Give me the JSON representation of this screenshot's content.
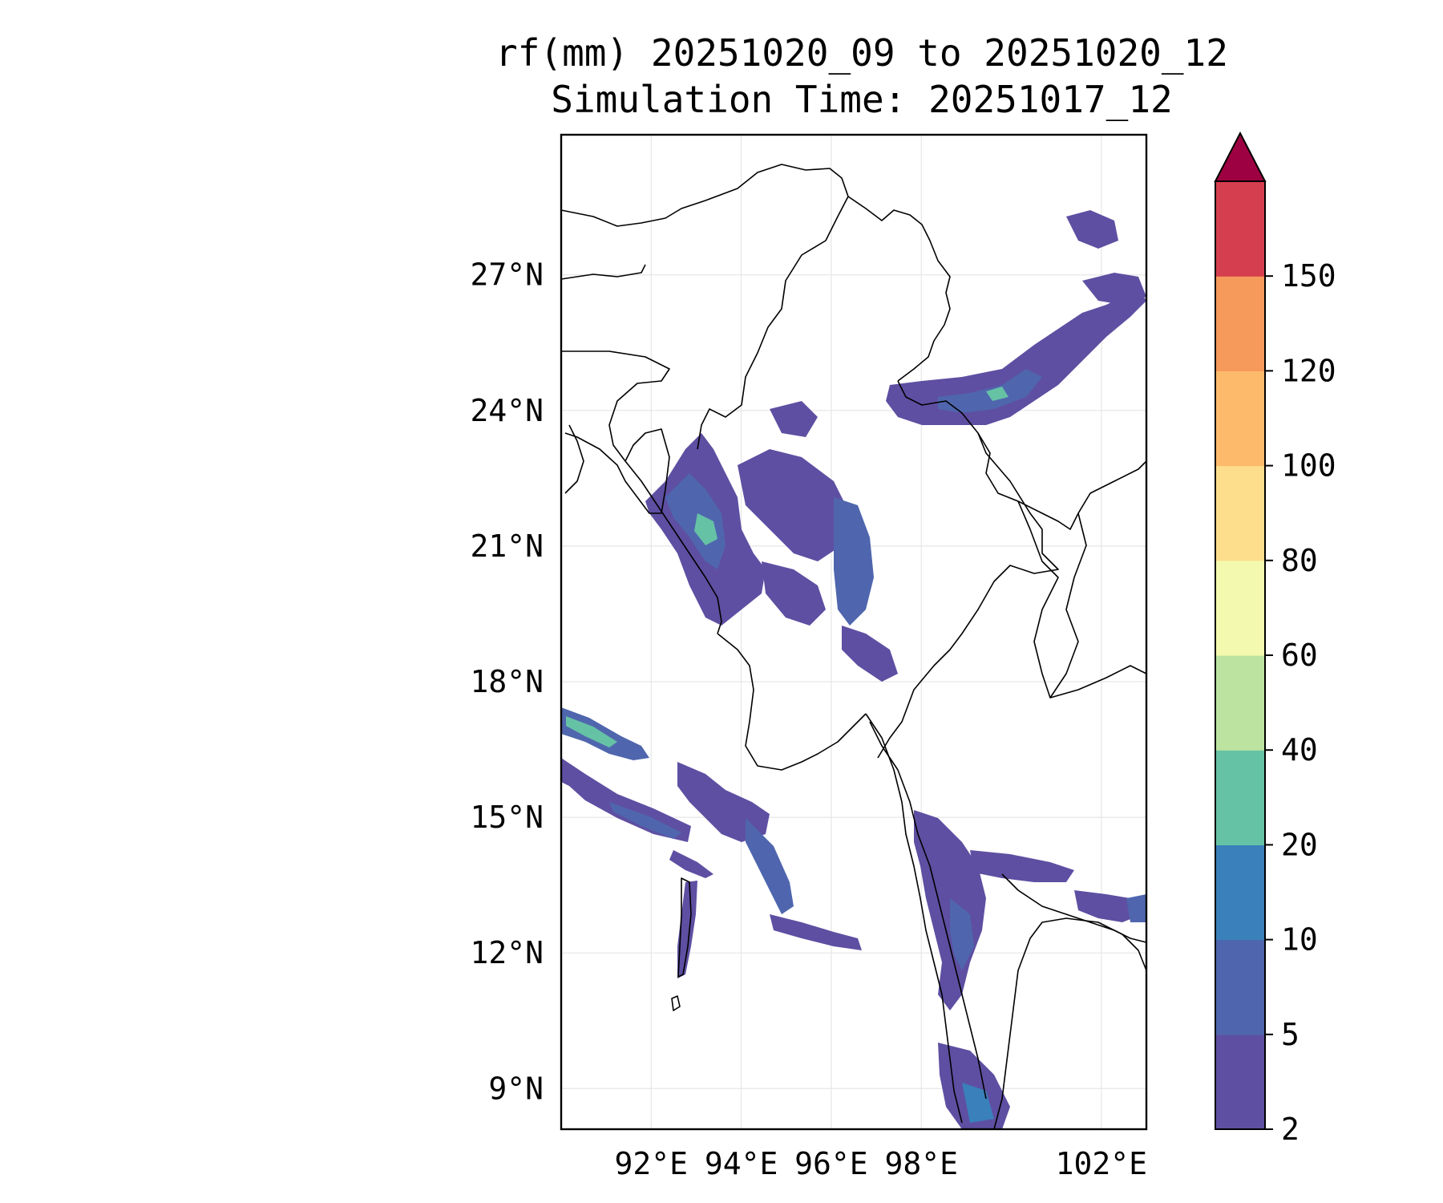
{
  "title": {
    "line1": "rf(mm) 20251020_09 to 20251020_12",
    "line2": "Simulation Time: 20251017_12"
  },
  "map": {
    "lat_labels": [
      "27°N",
      "24°N",
      "21°N",
      "18°N",
      "15°N",
      "12°N",
      "9°N"
    ],
    "lat_values": [
      27,
      24,
      21,
      18,
      15,
      12,
      9
    ],
    "lon_labels": [
      "92°E",
      "94°E",
      "96°E",
      "98°E",
      "102°E"
    ],
    "lon_values": [
      92,
      94,
      96,
      98,
      102
    ],
    "extent": {
      "lon_min": 90.0,
      "lon_max": 103.0,
      "lat_min": 8.1,
      "lat_max": 30.1
    },
    "rain_colors": {
      "2-5": "#5e4fa2",
      "5-10": "#4f66ae",
      "10-20": "#3a80ba",
      "20-40": "#66c2a5"
    }
  },
  "colorbar": {
    "levels": [
      "2",
      "5",
      "10",
      "20",
      "40",
      "60",
      "80",
      "100",
      "120",
      "150"
    ],
    "colors": [
      "#5e4fa2",
      "#4f66ae",
      "#3a80ba",
      "#66c2a5",
      "#bde3a0",
      "#f3f9ae",
      "#fcde8c",
      "#fdba6b",
      "#f59a5a",
      "#d53e4f"
    ],
    "extend_color": "#9e0142"
  }
}
